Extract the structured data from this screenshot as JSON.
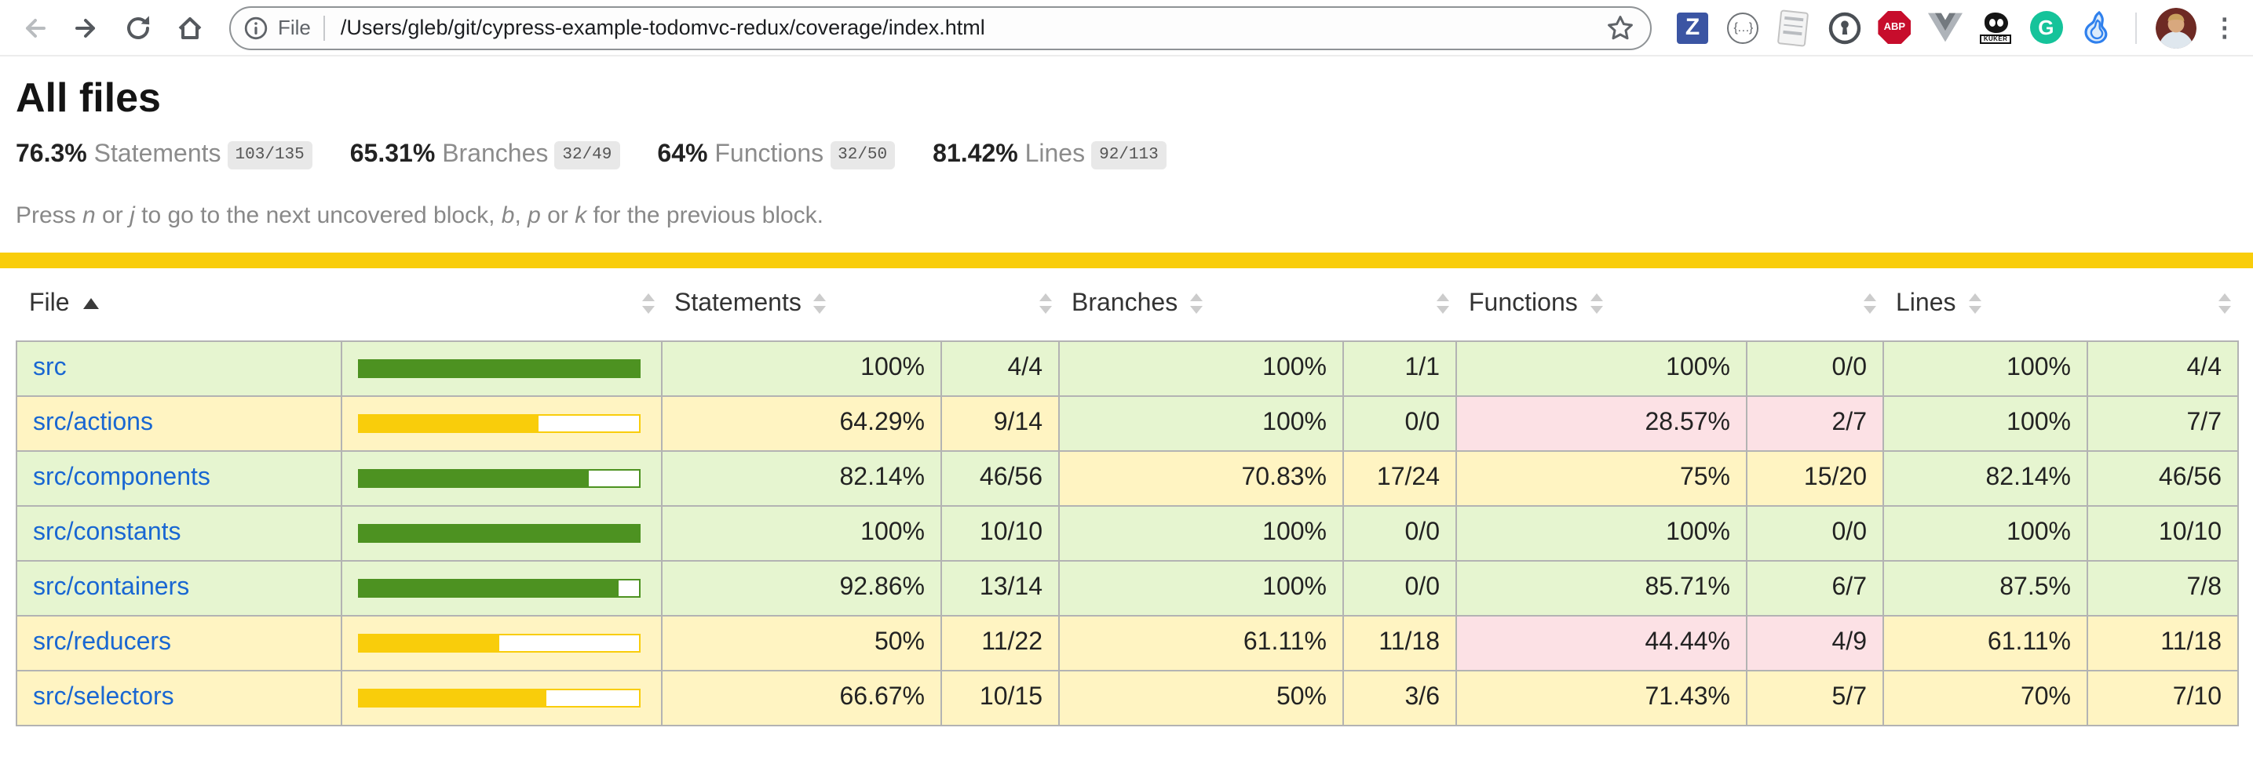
{
  "browser": {
    "scheme_label": "File",
    "url_path": "/Users/gleb/git/cypress-example-todomvc-redux/coverage/index.html",
    "glyphs": {
      "zotero": "Z",
      "json_viewer": "{…}",
      "adblock": "ABP",
      "kuker": "KUKER",
      "grammarly": "G",
      "menu": "⋮"
    },
    "icon_names": [
      "back-icon",
      "forward-icon",
      "reload-icon",
      "home-icon",
      "info-icon",
      "bookmark-star-icon",
      "zotero-extension-icon",
      "json-viewer-extension-icon",
      "scroll-extension-icon",
      "onepassword-extension-icon",
      "adblock-plus-extension-icon",
      "vue-devtools-extension-icon",
      "kuker-extension-icon",
      "grammarly-extension-icon",
      "flame-extension-icon",
      "profile-avatar",
      "browser-menu-icon"
    ]
  },
  "report": {
    "title": "All files",
    "metrics": [
      {
        "pct": "76.3%",
        "label": "Statements",
        "fraction": "103/135"
      },
      {
        "pct": "65.31%",
        "label": "Branches",
        "fraction": "32/49"
      },
      {
        "pct": "64%",
        "label": "Functions",
        "fraction": "32/50"
      },
      {
        "pct": "81.42%",
        "label": "Lines",
        "fraction": "92/113"
      }
    ],
    "hint_segments": [
      {
        "text": "Press "
      },
      {
        "text": "n",
        "em": true
      },
      {
        "text": " or "
      },
      {
        "text": "j",
        "em": true
      },
      {
        "text": " to go to the next uncovered block, "
      },
      {
        "text": "b",
        "em": true
      },
      {
        "text": ", "
      },
      {
        "text": "p",
        "em": true
      },
      {
        "text": " or "
      },
      {
        "text": "k",
        "em": true
      },
      {
        "text": " for the previous block."
      }
    ]
  },
  "table": {
    "headers": {
      "file": "File",
      "statements": "Statements",
      "branches": "Branches",
      "functions": "Functions",
      "lines": "Lines"
    },
    "rows": [
      {
        "file": "src",
        "level": "high",
        "bar_pct": 100,
        "statements": {
          "pct": "100%",
          "frac": "4/4",
          "level": "high"
        },
        "branches": {
          "pct": "100%",
          "frac": "1/1",
          "level": "high"
        },
        "functions": {
          "pct": "100%",
          "frac": "0/0",
          "level": "high"
        },
        "lines": {
          "pct": "100%",
          "frac": "4/4",
          "level": "high"
        }
      },
      {
        "file": "src/actions",
        "level": "medium",
        "bar_pct": 64.29,
        "statements": {
          "pct": "64.29%",
          "frac": "9/14",
          "level": "medium"
        },
        "branches": {
          "pct": "100%",
          "frac": "0/0",
          "level": "high"
        },
        "functions": {
          "pct": "28.57%",
          "frac": "2/7",
          "level": "low"
        },
        "lines": {
          "pct": "100%",
          "frac": "7/7",
          "level": "high"
        }
      },
      {
        "file": "src/components",
        "level": "high",
        "bar_pct": 82.14,
        "statements": {
          "pct": "82.14%",
          "frac": "46/56",
          "level": "high"
        },
        "branches": {
          "pct": "70.83%",
          "frac": "17/24",
          "level": "medium"
        },
        "functions": {
          "pct": "75%",
          "frac": "15/20",
          "level": "medium"
        },
        "lines": {
          "pct": "82.14%",
          "frac": "46/56",
          "level": "high"
        }
      },
      {
        "file": "src/constants",
        "level": "high",
        "bar_pct": 100,
        "statements": {
          "pct": "100%",
          "frac": "10/10",
          "level": "high"
        },
        "branches": {
          "pct": "100%",
          "frac": "0/0",
          "level": "high"
        },
        "functions": {
          "pct": "100%",
          "frac": "0/0",
          "level": "high"
        },
        "lines": {
          "pct": "100%",
          "frac": "10/10",
          "level": "high"
        }
      },
      {
        "file": "src/containers",
        "level": "high",
        "bar_pct": 92.86,
        "statements": {
          "pct": "92.86%",
          "frac": "13/14",
          "level": "high"
        },
        "branches": {
          "pct": "100%",
          "frac": "0/0",
          "level": "high"
        },
        "functions": {
          "pct": "85.71%",
          "frac": "6/7",
          "level": "high"
        },
        "lines": {
          "pct": "87.5%",
          "frac": "7/8",
          "level": "high"
        }
      },
      {
        "file": "src/reducers",
        "level": "medium",
        "bar_pct": 50,
        "statements": {
          "pct": "50%",
          "frac": "11/22",
          "level": "medium"
        },
        "branches": {
          "pct": "61.11%",
          "frac": "11/18",
          "level": "medium"
        },
        "functions": {
          "pct": "44.44%",
          "frac": "4/9",
          "level": "low"
        },
        "lines": {
          "pct": "61.11%",
          "frac": "11/18",
          "level": "medium"
        }
      },
      {
        "file": "src/selectors",
        "level": "medium",
        "bar_pct": 66.67,
        "statements": {
          "pct": "66.67%",
          "frac": "10/15",
          "level": "medium"
        },
        "branches": {
          "pct": "50%",
          "frac": "3/6",
          "level": "medium"
        },
        "functions": {
          "pct": "71.43%",
          "frac": "5/7",
          "level": "medium"
        },
        "lines": {
          "pct": "70%",
          "frac": "7/10",
          "level": "medium"
        }
      }
    ]
  },
  "colors": {
    "high_bg": "#e6f5d0",
    "medium_bg": "#fff4c2",
    "low_bg": "#fce1e5",
    "fill_high": "#4d9221",
    "fill_medium": "#f9cd0b",
    "status_line": "#f9cd0b",
    "link": "#1967d2"
  }
}
